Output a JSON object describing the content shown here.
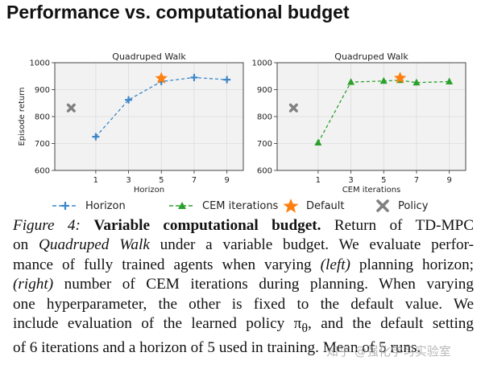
{
  "page": {
    "title": "Performance vs. computational budget"
  },
  "chart_data": [
    {
      "type": "line",
      "title": "Quadruped Walk",
      "xlabel": "Horizon",
      "ylabel": "Episode return",
      "x_ticks": [
        1,
        3,
        5,
        7,
        9
      ],
      "y_ticks": [
        600,
        700,
        800,
        900,
        1000
      ],
      "xlim": [
        -1.5,
        10
      ],
      "ylim": [
        600,
        1000
      ],
      "grid": true,
      "series": [
        {
          "name": "Horizon",
          "style": "dashed",
          "marker": "plus",
          "color": "#3a86c8",
          "x": [
            1,
            3,
            5,
            7,
            9
          ],
          "y": [
            725,
            862,
            930,
            945,
            937
          ]
        }
      ],
      "default_point": {
        "x": 5,
        "y": 942,
        "color": "#ff7f0e"
      },
      "policy_point": {
        "x": -0.5,
        "y": 832,
        "color": "#808080"
      }
    },
    {
      "type": "line",
      "title": "Quadruped Walk",
      "xlabel": "CEM iterations",
      "ylabel": "",
      "x_ticks": [
        1,
        3,
        5,
        7,
        9
      ],
      "y_ticks": [
        600,
        700,
        800,
        900,
        1000
      ],
      "xlim": [
        -1.5,
        10
      ],
      "ylim": [
        600,
        1000
      ],
      "grid": true,
      "series": [
        {
          "name": "CEM iterations",
          "style": "dashed",
          "marker": "triangle",
          "color": "#2ca02c",
          "x": [
            1,
            3,
            5,
            6,
            7,
            9
          ],
          "y": [
            703,
            928,
            932,
            935,
            926,
            930
          ]
        }
      ],
      "default_point": {
        "x": 6,
        "y": 943,
        "color": "#ff7f0e"
      },
      "policy_point": {
        "x": -0.5,
        "y": 832,
        "color": "#808080"
      }
    }
  ],
  "legend": {
    "position": "bottom",
    "items": [
      {
        "label": "Horizon",
        "marker": "plus",
        "color": "#3a86c8"
      },
      {
        "label": "CEM iterations",
        "marker": "triangle",
        "color": "#2ca02c"
      },
      {
        "label": "Default",
        "marker": "star",
        "color": "#ff7f0e"
      },
      {
        "label": "Policy",
        "marker": "x",
        "color": "#808080"
      }
    ]
  },
  "caption": {
    "lines": [
      [
        "Figure 4:",
        " ",
        "Variable computational budget.",
        " Return of TD-MPC"
      ],
      [
        "on ",
        "Quadruped Walk",
        " under a variable budget. We evaluate perfor-"
      ],
      [
        "mance of fully trained agents when varying ",
        "(left)",
        " planning horizon;"
      ],
      [
        "(right)",
        " number of CEM iterations during planning. When varying"
      ],
      [
        "one hyperparameter, the other is fixed to the default value. We"
      ],
      [
        "include evaluation of the learned policy π",
        "θ",
        ", and the default setting"
      ],
      [
        "of 6 iterations and a horizon of 5 used in training. Mean of 5 runs."
      ]
    ]
  },
  "watermark": {
    "text": "知乎 @强化学习实验室"
  }
}
